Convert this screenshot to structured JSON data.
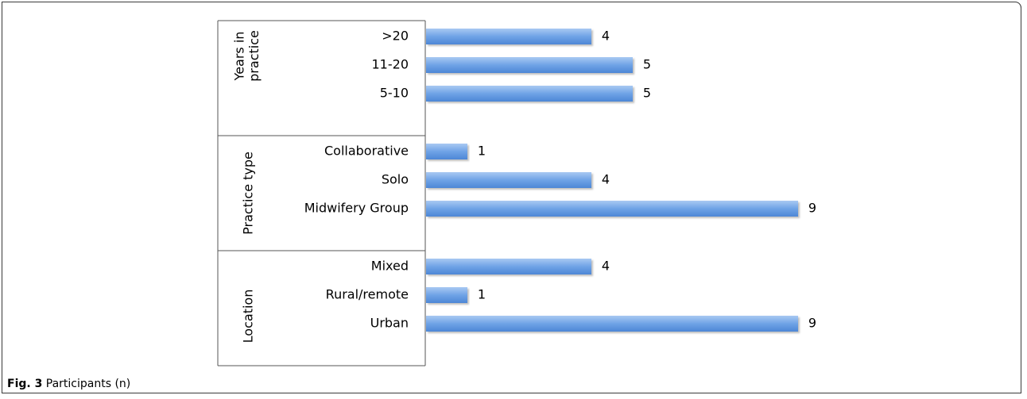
{
  "caption": {
    "label": "Fig. 3",
    "text": "Participants (n)"
  },
  "chart_data": {
    "type": "bar",
    "orientation": "horizontal",
    "xlim": [
      0,
      10
    ],
    "grid": false,
    "legend": "none",
    "bar_color": "#6fa3e6",
    "groups": [
      {
        "name": "Years in practice",
        "categories": [
          ">20",
          "11-20",
          "5-10"
        ],
        "values": [
          4,
          5,
          5
        ]
      },
      {
        "name": "Practice type",
        "categories": [
          "Collaborative",
          "Solo",
          "Midwifery Group"
        ],
        "values": [
          1,
          4,
          9
        ]
      },
      {
        "name": "Location",
        "categories": [
          "Mixed",
          "Rural/remote",
          "Urban"
        ],
        "values": [
          4,
          1,
          9
        ]
      }
    ]
  }
}
